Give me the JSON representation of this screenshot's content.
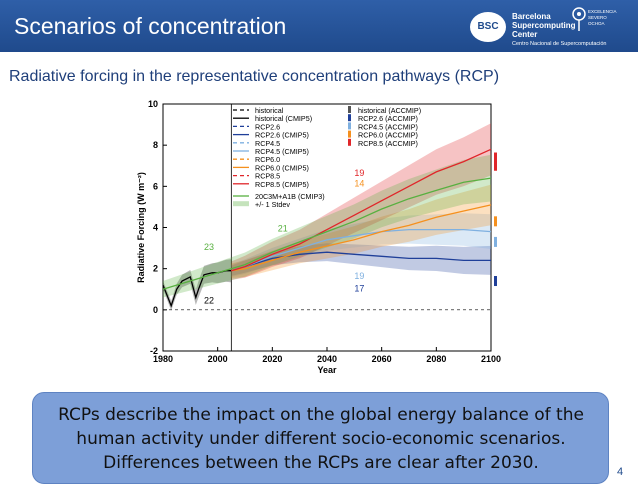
{
  "slide": {
    "title": "Scenarios of concentration",
    "subtitle": "Radiative forcing in the representative concentration pathways (RCP)",
    "note": "RCPs describe the impact on the global energy balance of the human activity under different socio-economic scenarios. Differences between the RCPs are clear after 2030.",
    "page_number": "4"
  },
  "logo": {
    "circle_text": "BSC",
    "name_lines": [
      "Barcelona",
      "Supercomputing",
      "Center"
    ],
    "tagline": "Centro Nacional de Supercomputación",
    "severo_lines": [
      "EXCELENCIA",
      "SEVERO",
      "OCHOA"
    ]
  },
  "colors": {
    "header_bg": "#1f4a8c",
    "note_bg": "#7d9fd8",
    "historical": "#000000",
    "rcp26": "#1f3f99",
    "rcp45": "#7fb0e0",
    "rcp60": "#f5901e",
    "rcp85": "#e0262a",
    "sres": "#58b040"
  },
  "chart_data": {
    "type": "line",
    "xlabel": "Year",
    "ylabel": "Radiative Forcing (W m⁻²)",
    "xlim": [
      1980,
      2100
    ],
    "ylim": [
      -2,
      10
    ],
    "x_ticks": [
      "1980",
      "2000",
      "2020",
      "2040",
      "2060",
      "2080",
      "2100"
    ],
    "y_ticks": [
      "-2",
      "0",
      "2",
      "4",
      "6",
      "8",
      "10"
    ],
    "legend_left": [
      {
        "label": "historical",
        "color": "#000000",
        "style": "dashed"
      },
      {
        "label": "historical (CMIP5)",
        "color": "#000000",
        "style": "solid"
      },
      {
        "label": "RCP2.6",
        "color": "#1f3f99",
        "style": "dashed"
      },
      {
        "label": "RCP2.6 (CMIP5)",
        "color": "#1f3f99",
        "style": "solid"
      },
      {
        "label": "RCP4.5",
        "color": "#7fb0e0",
        "style": "dashed"
      },
      {
        "label": "RCP4.5 (CMIP5)",
        "color": "#7fb0e0",
        "style": "solid"
      },
      {
        "label": "RCP6.0",
        "color": "#f5901e",
        "style": "dashed"
      },
      {
        "label": "RCP6.0 (CMIP5)",
        "color": "#f5901e",
        "style": "solid"
      },
      {
        "label": "RCP8.5",
        "color": "#e0262a",
        "style": "dashed"
      },
      {
        "label": "RCP8.5 (CMIP5)",
        "color": "#e0262a",
        "style": "solid"
      }
    ],
    "legend_left_extra": [
      {
        "label": "20C3M+A1B (CMIP3)",
        "color": "#58b040",
        "style": "solid"
      },
      {
        "label": "+/- 1 Stdev",
        "color": "#58b040",
        "style": "band"
      }
    ],
    "legend_right": [
      {
        "label": "historical (ACCMIP)",
        "color": "#555555"
      },
      {
        "label": "RCP2.6 (ACCMIP)",
        "color": "#1f3f99"
      },
      {
        "label": "RCP4.5 (ACCMIP)",
        "color": "#7fb0e0"
      },
      {
        "label": "RCP6.0 (ACCMIP)",
        "color": "#f5901e"
      },
      {
        "label": "RCP8.5 (ACCMIP)",
        "color": "#e0262a"
      }
    ],
    "annotations": [
      {
        "text": "19",
        "x": 2050,
        "y": 6.5,
        "color": "#e0262a"
      },
      {
        "text": "14",
        "x": 2050,
        "y": 6.0,
        "color": "#f5901e"
      },
      {
        "text": "21",
        "x": 2022,
        "y": 3.8,
        "color": "#58b040"
      },
      {
        "text": "23",
        "x": 1995,
        "y": 2.9,
        "color": "#58b040"
      },
      {
        "text": "22",
        "x": 1995,
        "y": 0.3,
        "color": "#000000"
      },
      {
        "text": "19",
        "x": 2050,
        "y": 1.5,
        "color": "#7fb0e0"
      },
      {
        "text": "17",
        "x": 2050,
        "y": 0.9,
        "color": "#1f3f99"
      }
    ],
    "series": [
      {
        "name": "historical (CMIP5)",
        "color": "#000000",
        "x": [
          1980,
          1983,
          1985,
          1987,
          1990,
          1992,
          1993,
          1995,
          1998,
          2000,
          2003,
          2005
        ],
        "y": [
          1.2,
          0.2,
          1.0,
          1.4,
          1.6,
          0.6,
          1.0,
          1.7,
          1.8,
          1.8,
          1.9,
          1.9
        ]
      },
      {
        "name": "RCP2.6 (CMIP5)",
        "color": "#1f3f99",
        "x": [
          2005,
          2010,
          2020,
          2030,
          2040,
          2050,
          2060,
          2070,
          2080,
          2090,
          2100
        ],
        "y": [
          1.9,
          2.1,
          2.5,
          2.7,
          2.8,
          2.7,
          2.6,
          2.5,
          2.5,
          2.4,
          2.4
        ]
      },
      {
        "name": "RCP4.5 (CMIP5)",
        "color": "#7fb0e0",
        "x": [
          2005,
          2010,
          2020,
          2030,
          2040,
          2050,
          2060,
          2070,
          2080,
          2090,
          2100
        ],
        "y": [
          1.9,
          2.1,
          2.6,
          3.0,
          3.4,
          3.6,
          3.8,
          3.9,
          3.9,
          3.9,
          3.8
        ]
      },
      {
        "name": "RCP6.0 (CMIP5)",
        "color": "#f5901e",
        "x": [
          2005,
          2010,
          2020,
          2030,
          2040,
          2050,
          2060,
          2070,
          2080,
          2090,
          2100
        ],
        "y": [
          1.9,
          2.0,
          2.4,
          2.8,
          3.1,
          3.4,
          3.8,
          4.1,
          4.5,
          4.8,
          5.1
        ]
      },
      {
        "name": "RCP8.5 (CMIP5)",
        "color": "#e0262a",
        "x": [
          2005,
          2010,
          2020,
          2030,
          2040,
          2050,
          2060,
          2070,
          2080,
          2090,
          2100
        ],
        "y": [
          1.9,
          2.1,
          2.7,
          3.2,
          3.9,
          4.6,
          5.3,
          6.0,
          6.7,
          7.2,
          7.8
        ]
      },
      {
        "name": "20C3M+A1B (CMIP3)",
        "color": "#58b040",
        "x": [
          1980,
          1990,
          2000,
          2010,
          2020,
          2030,
          2040,
          2050,
          2060,
          2070,
          2080,
          2090,
          2100
        ],
        "y": [
          1.0,
          1.4,
          1.8,
          2.2,
          2.8,
          3.3,
          3.8,
          4.3,
          4.9,
          5.4,
          5.8,
          6.2,
          6.4
        ]
      }
    ]
  }
}
